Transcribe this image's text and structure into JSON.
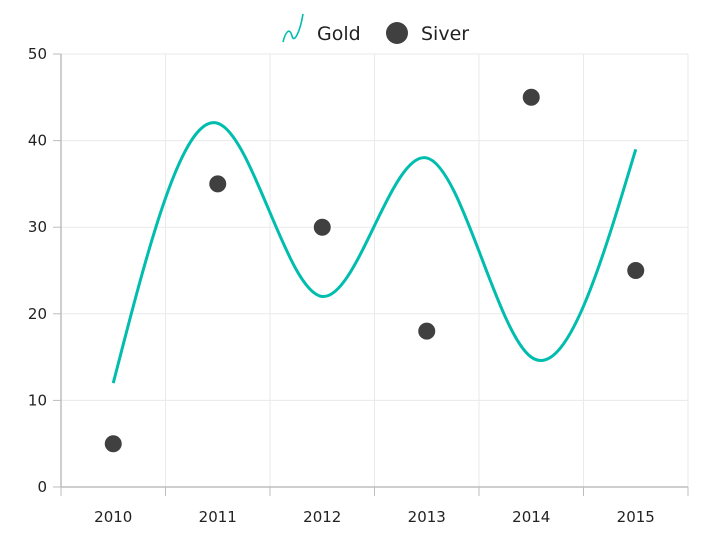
{
  "chart_data": {
    "type": "line",
    "categories": [
      "2010",
      "2011",
      "2012",
      "2013",
      "2014",
      "2015"
    ],
    "series": [
      {
        "name": "Gold",
        "type": "spline",
        "color": "#00BDAE",
        "icon": "spline-icon",
        "values": [
          12,
          42,
          22,
          38,
          15,
          39
        ]
      },
      {
        "name": "Siver",
        "type": "scatter",
        "color": "#404041",
        "icon": "circle-icon",
        "values": [
          5,
          35,
          30,
          18,
          45,
          25
        ]
      }
    ],
    "ylim": [
      0,
      50
    ],
    "y_ticks": [
      "0",
      "10",
      "20",
      "30",
      "40",
      "50"
    ],
    "title": "",
    "xlabel": "",
    "ylabel": "",
    "grid": true,
    "legend_position": "top-center"
  }
}
